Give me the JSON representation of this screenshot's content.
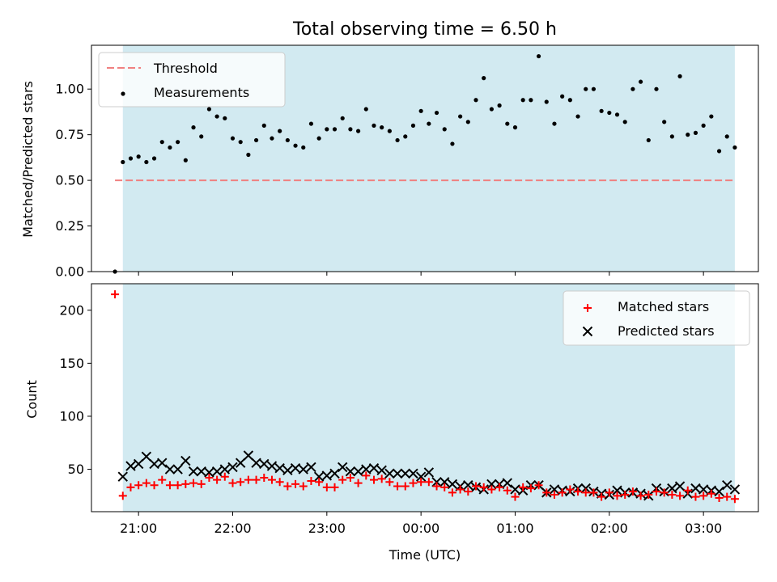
{
  "figure": {
    "title": "Total observing time = 6.50 h"
  },
  "chart_data": [
    {
      "type": "scatter",
      "panel": "top",
      "xlabel": "",
      "ylabel": "Matched/Predicted stars",
      "ylim": [
        0,
        1.24
      ],
      "yticks": [
        0,
        0.25,
        0.5,
        0.75,
        1.0
      ],
      "ytick_labels": [
        "0.00",
        "0.25",
        "0.50",
        "0.75",
        "1.00"
      ],
      "grid": false,
      "legend_position": "top-left",
      "shaded_interval": {
        "start": "20:50",
        "end": "03:20",
        "color": "#add8e6"
      },
      "threshold": {
        "name": "Threshold",
        "value": 0.5,
        "x_start": "20:45",
        "x_end": "03:20",
        "color": "#f08080",
        "style": "dashed"
      },
      "series": [
        {
          "name": "Measurements",
          "marker": "dot",
          "color": "#000000",
          "points": [
            [
              "20:45",
              0.0
            ],
            [
              "20:50",
              0.6
            ],
            [
              "20:55",
              0.62
            ],
            [
              "21:00",
              0.63
            ],
            [
              "21:05",
              0.6
            ],
            [
              "21:10",
              0.62
            ],
            [
              "21:15",
              0.71
            ],
            [
              "21:20",
              0.68
            ],
            [
              "21:25",
              0.71
            ],
            [
              "21:30",
              0.61
            ],
            [
              "21:35",
              0.79
            ],
            [
              "21:40",
              0.74
            ],
            [
              "21:45",
              0.89
            ],
            [
              "21:50",
              0.85
            ],
            [
              "21:55",
              0.84
            ],
            [
              "22:00",
              0.73
            ],
            [
              "22:05",
              0.71
            ],
            [
              "22:10",
              0.64
            ],
            [
              "22:15",
              0.72
            ],
            [
              "22:20",
              0.8
            ],
            [
              "22:25",
              0.73
            ],
            [
              "22:30",
              0.77
            ],
            [
              "22:35",
              0.72
            ],
            [
              "22:40",
              0.69
            ],
            [
              "22:45",
              0.68
            ],
            [
              "22:50",
              0.81
            ],
            [
              "22:55",
              0.73
            ],
            [
              "23:00",
              0.78
            ],
            [
              "23:05",
              0.78
            ],
            [
              "23:10",
              0.84
            ],
            [
              "23:15",
              0.78
            ],
            [
              "23:20",
              0.77
            ],
            [
              "23:25",
              0.89
            ],
            [
              "23:30",
              0.8
            ],
            [
              "23:35",
              0.79
            ],
            [
              "23:40",
              0.77
            ],
            [
              "23:45",
              0.72
            ],
            [
              "23:50",
              0.74
            ],
            [
              "23:55",
              0.8
            ],
            [
              "00:00",
              0.88
            ],
            [
              "00:05",
              0.81
            ],
            [
              "00:10",
              0.87
            ],
            [
              "00:15",
              0.78
            ],
            [
              "00:20",
              0.7
            ],
            [
              "00:25",
              0.85
            ],
            [
              "00:30",
              0.82
            ],
            [
              "00:35",
              0.94
            ],
            [
              "00:40",
              1.06
            ],
            [
              "00:45",
              0.89
            ],
            [
              "00:50",
              0.91
            ],
            [
              "00:55",
              0.81
            ],
            [
              "01:00",
              0.79
            ],
            [
              "01:05",
              0.94
            ],
            [
              "01:10",
              0.94
            ],
            [
              "01:15",
              1.18
            ],
            [
              "01:20",
              0.93
            ],
            [
              "01:25",
              0.81
            ],
            [
              "01:30",
              0.96
            ],
            [
              "01:35",
              0.94
            ],
            [
              "01:40",
              0.85
            ],
            [
              "01:45",
              1.0
            ],
            [
              "01:50",
              1.0
            ],
            [
              "01:55",
              0.88
            ],
            [
              "02:00",
              0.87
            ],
            [
              "02:05",
              0.86
            ],
            [
              "02:10",
              0.82
            ],
            [
              "02:15",
              1.0
            ],
            [
              "02:20",
              1.04
            ],
            [
              "02:25",
              0.72
            ],
            [
              "02:30",
              1.0
            ],
            [
              "02:35",
              0.82
            ],
            [
              "02:40",
              0.74
            ],
            [
              "02:45",
              1.07
            ],
            [
              "02:50",
              0.75
            ],
            [
              "02:55",
              0.76
            ],
            [
              "03:00",
              0.8
            ],
            [
              "03:05",
              0.85
            ],
            [
              "03:10",
              0.66
            ],
            [
              "03:15",
              0.74
            ],
            [
              "03:20",
              0.68
            ]
          ]
        }
      ]
    },
    {
      "type": "scatter",
      "panel": "bottom",
      "xlabel": "Time (UTC)",
      "ylabel": "Count",
      "ylim": [
        10,
        225
      ],
      "yticks": [
        50,
        100,
        150,
        200
      ],
      "ytick_labels": [
        "50",
        "100",
        "150",
        "200"
      ],
      "xlim": [
        "20:30",
        "03:35"
      ],
      "xticks": [
        "21:00",
        "22:00",
        "23:00",
        "00:00",
        "01:00",
        "02:00",
        "03:00"
      ],
      "grid": false,
      "legend_position": "top-right",
      "shaded_interval": {
        "start": "20:50",
        "end": "03:20",
        "color": "#add8e6"
      },
      "x": [
        "20:45",
        "20:50",
        "20:55",
        "21:00",
        "21:05",
        "21:10",
        "21:15",
        "21:20",
        "21:25",
        "21:30",
        "21:35",
        "21:40",
        "21:45",
        "21:50",
        "21:55",
        "22:00",
        "22:05",
        "22:10",
        "22:15",
        "22:20",
        "22:25",
        "22:30",
        "22:35",
        "22:40",
        "22:45",
        "22:50",
        "22:55",
        "23:00",
        "23:05",
        "23:10",
        "23:15",
        "23:20",
        "23:25",
        "23:30",
        "23:35",
        "23:40",
        "23:45",
        "23:50",
        "23:55",
        "00:00",
        "00:05",
        "00:10",
        "00:15",
        "00:20",
        "00:25",
        "00:30",
        "00:35",
        "00:40",
        "00:45",
        "00:50",
        "00:55",
        "01:00",
        "01:05",
        "01:10",
        "01:15",
        "01:20",
        "01:25",
        "01:30",
        "01:35",
        "01:40",
        "01:45",
        "01:50",
        "01:55",
        "02:00",
        "02:05",
        "02:10",
        "02:15",
        "02:20",
        "02:25",
        "02:30",
        "02:35",
        "02:40",
        "02:45",
        "02:50",
        "02:55",
        "03:00",
        "03:05",
        "03:10",
        "03:15",
        "03:20"
      ],
      "series": [
        {
          "name": "Matched stars",
          "marker": "plus",
          "color": "#ff0000",
          "values": [
            215,
            25,
            33,
            35,
            37,
            35,
            40,
            35,
            35,
            36,
            37,
            36,
            42,
            40,
            43,
            37,
            38,
            40,
            40,
            42,
            40,
            38,
            34,
            36,
            34,
            39,
            38,
            33,
            33,
            40,
            42,
            37,
            44,
            40,
            41,
            38,
            34,
            34,
            37,
            38,
            38,
            34,
            33,
            28,
            31,
            29,
            34,
            33,
            31,
            33,
            30,
            24,
            33,
            32,
            35,
            28,
            26,
            28,
            31,
            29,
            28,
            28,
            24,
            28,
            25,
            26,
            29,
            25,
            26,
            29,
            28,
            26,
            25,
            30,
            24,
            25,
            27,
            23,
            24,
            22
          ]
        },
        {
          "name": "Predicted stars",
          "marker": "x",
          "color": "#000000",
          "values": [
            null,
            43,
            53,
            55,
            62,
            55,
            56,
            50,
            50,
            58,
            48,
            48,
            47,
            48,
            50,
            52,
            56,
            63,
            56,
            55,
            53,
            51,
            49,
            51,
            50,
            52,
            43,
            44,
            46,
            52,
            48,
            48,
            50,
            51,
            49,
            46,
            46,
            46,
            46,
            43,
            47,
            38,
            38,
            36,
            34,
            35,
            33,
            31,
            36,
            36,
            37,
            31,
            30,
            35,
            35,
            28,
            31,
            30,
            29,
            32,
            32,
            29,
            27,
            26,
            30,
            28,
            28,
            27,
            25,
            32,
            29,
            32,
            34,
            27,
            32,
            31,
            30,
            29,
            35,
            31
          ]
        }
      ]
    }
  ]
}
